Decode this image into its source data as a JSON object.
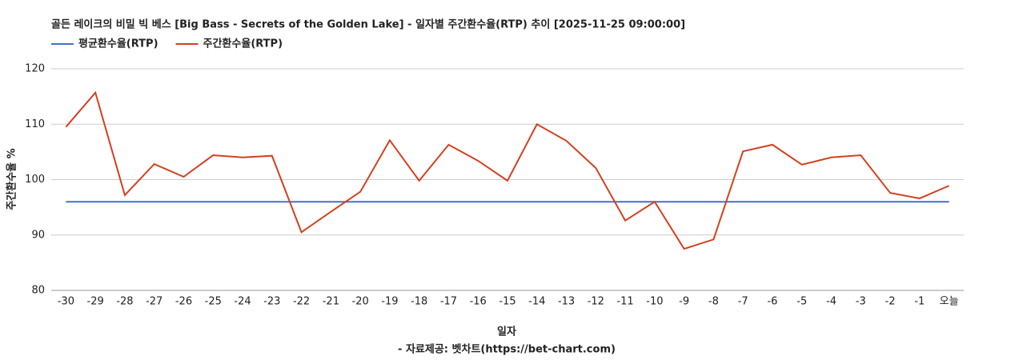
{
  "chart_data": {
    "type": "line",
    "title": "골든 레이크의 비밀 빅 베스 [Big Bass - Secrets of the Golden Lake] - 일자별 주간환수율(RTP) 추이 [2025-11-25 09:00:00]",
    "x_label": "일자",
    "y_label": "주간환수율 %",
    "source": "- 자료제공: 벳차트(https://bet-chart.com)",
    "categories": [
      "-30",
      "-29",
      "-28",
      "-27",
      "-26",
      "-25",
      "-24",
      "-23",
      "-22",
      "-21",
      "-20",
      "-19",
      "-18",
      "-17",
      "-16",
      "-15",
      "-14",
      "-13",
      "-12",
      "-11",
      "-10",
      "-9",
      "-8",
      "-7",
      "-6",
      "-5",
      "-4",
      "-3",
      "-2",
      "-1",
      "오늘"
    ],
    "series": [
      {
        "name": "평균환수율(RTP)",
        "color": "#4472c4",
        "values": [
          96,
          96,
          96,
          96,
          96,
          96,
          96,
          96,
          96,
          96,
          96,
          96,
          96,
          96,
          96,
          96,
          96,
          96,
          96,
          96,
          96,
          96,
          96,
          96,
          96,
          96,
          96,
          96,
          96,
          96,
          96
        ]
      },
      {
        "name": "주간환수율(RTP)",
        "color": "#d4401f",
        "values": [
          109.5,
          115.7,
          97.2,
          102.8,
          100.5,
          104.4,
          104.0,
          104.3,
          90.5,
          94.2,
          97.8,
          107.1,
          99.8,
          106.3,
          103.4,
          99.8,
          110.0,
          107.0,
          102.1,
          92.6,
          96.0,
          87.5,
          89.2,
          105.1,
          106.3,
          102.7,
          104.0,
          104.4,
          97.6,
          96.6,
          98.9
        ]
      }
    ],
    "ylim": [
      80,
      120
    ],
    "yticks": [
      80,
      90,
      100,
      110,
      120
    ],
    "grid": true,
    "legend": "top-left"
  }
}
